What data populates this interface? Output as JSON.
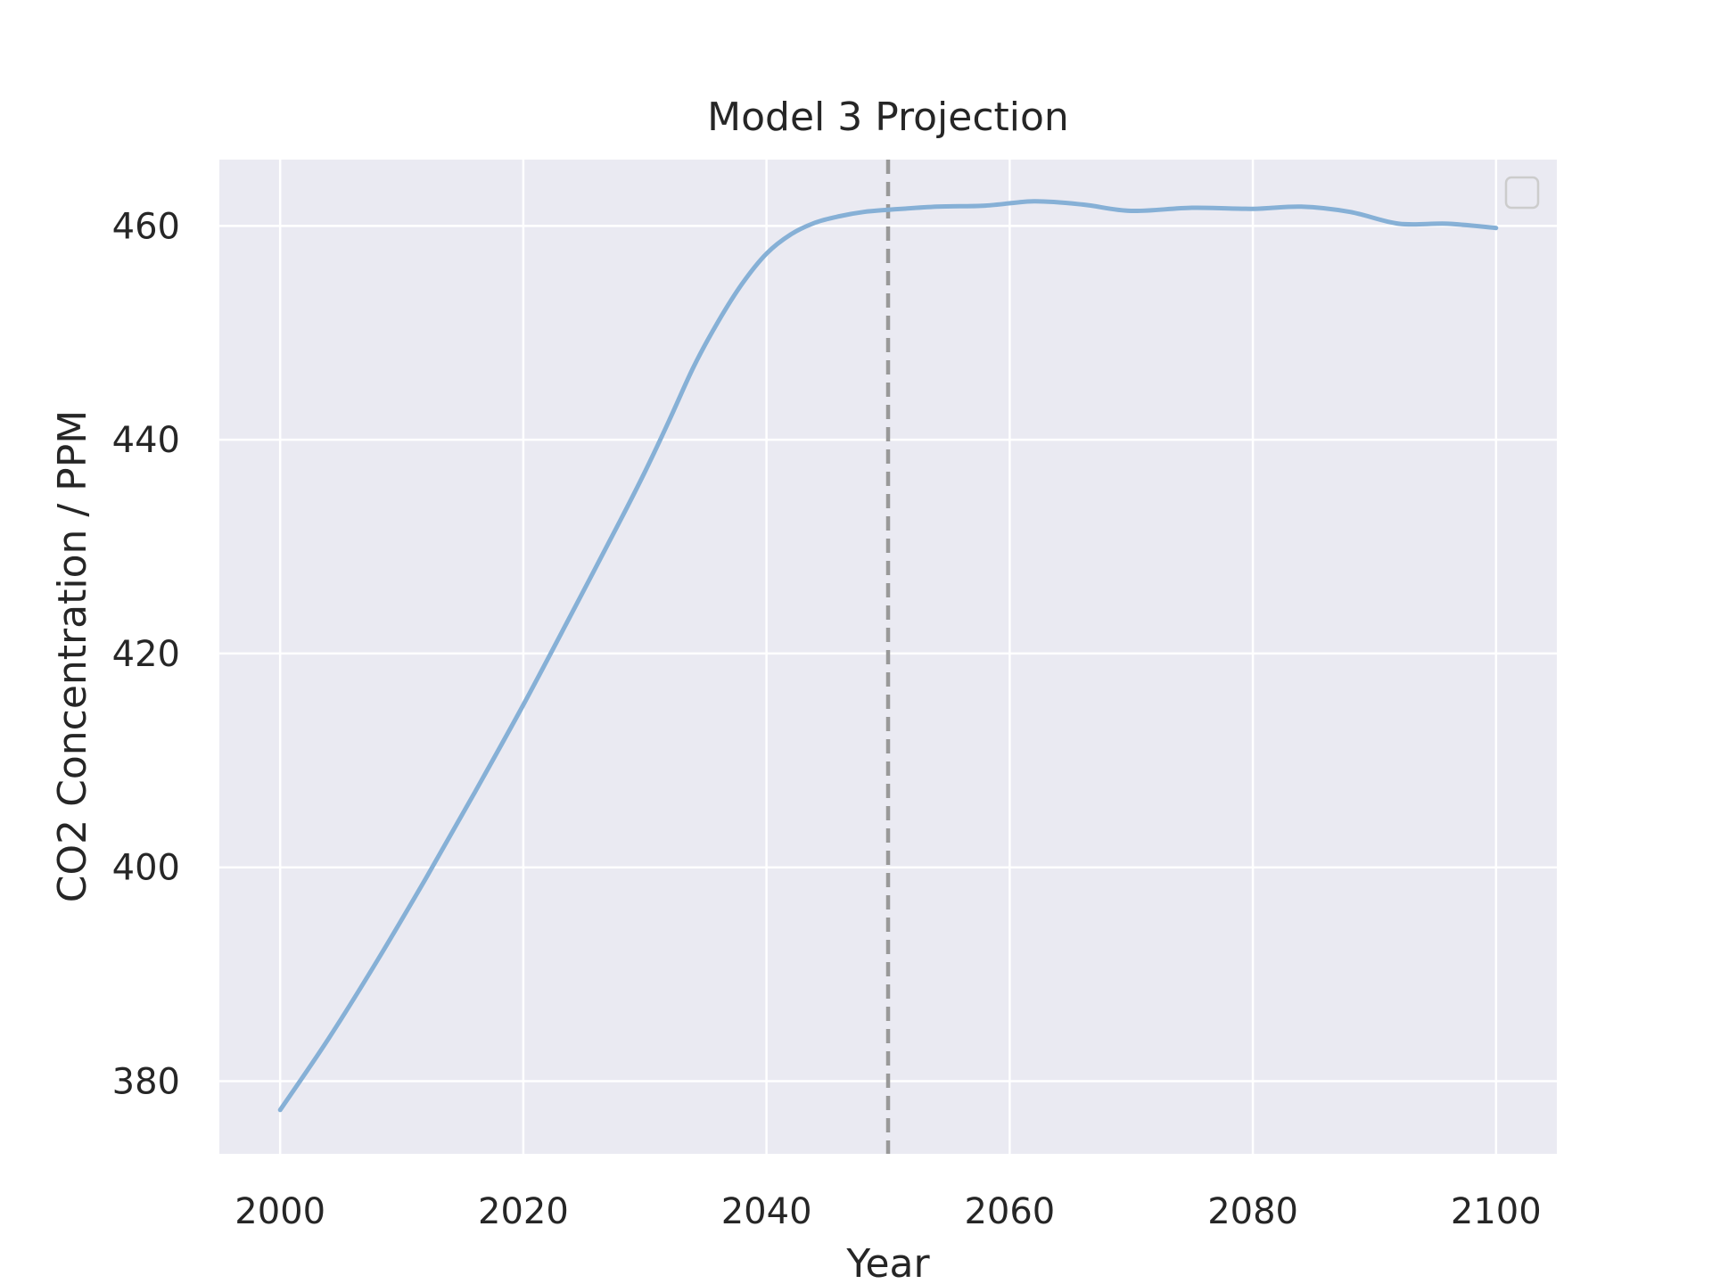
{
  "chart_data": {
    "type": "line",
    "title": "Model 3 Projection",
    "xlabel": "Year",
    "ylabel": "CO2 Concentration / PPM",
    "xlim": [
      1995,
      2105
    ],
    "ylim": [
      373.2,
      466.2
    ],
    "xticks": [
      2000,
      2020,
      2040,
      2060,
      2080,
      2100
    ],
    "yticks": [
      380,
      400,
      420,
      440,
      460
    ],
    "grid": true,
    "legend": "top-right (empty)",
    "vline": {
      "x": 2050,
      "style": "dashed",
      "color": "#999999"
    },
    "colors": {
      "background": "#eaeaf2",
      "grid": "#ffffff",
      "series": "#86b0d6"
    },
    "series": [
      {
        "x": [
          2000,
          2004,
          2008,
          2012,
          2016,
          2020,
          2024,
          2028,
          2030,
          2032,
          2034,
          2036,
          2038,
          2040,
          2042,
          2044,
          2046,
          2048,
          2050,
          2054,
          2058,
          2062,
          2066,
          2070,
          2075,
          2080,
          2084,
          2088,
          2092,
          2096,
          2100
        ],
        "y": [
          377.3,
          384.0,
          391.3,
          399.0,
          407.0,
          415.2,
          423.8,
          432.5,
          437.0,
          441.8,
          446.8,
          451.0,
          454.6,
          457.4,
          459.2,
          460.3,
          460.9,
          461.3,
          461.5,
          461.8,
          461.9,
          462.3,
          462.0,
          461.4,
          461.7,
          461.6,
          461.8,
          461.3,
          460.2,
          460.2,
          459.8
        ]
      }
    ]
  }
}
